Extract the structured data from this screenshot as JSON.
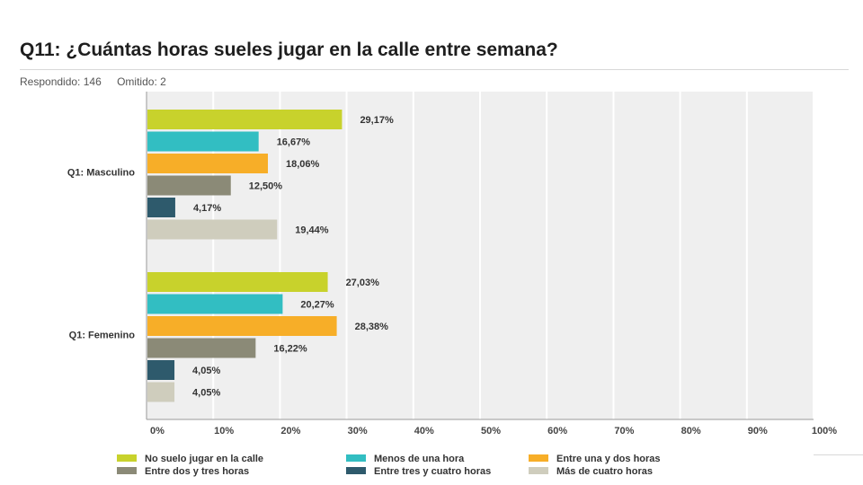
{
  "header": {
    "title": "Q11: ¿Cuántas horas sueles jugar en la calle entre semana?",
    "answered": "Respondido: 146",
    "skipped": "Omitido: 2"
  },
  "chart_data": {
    "type": "bar",
    "orientation": "horizontal",
    "categories": [
      "Q1: Masculino",
      "Q1: Femenino"
    ],
    "series": [
      {
        "name": "No suelo jugar en la calle",
        "color": "#c8d22c",
        "values": [
          29.17,
          27.03
        ],
        "labels": [
          "29,17%",
          "27,03%"
        ]
      },
      {
        "name": "Menos de una hora",
        "color": "#32bec2",
        "values": [
          16.67,
          20.27
        ],
        "labels": [
          "16,67%",
          "20,27%"
        ]
      },
      {
        "name": "Entre una y dos horas",
        "color": "#f7ae28",
        "values": [
          18.06,
          28.38
        ],
        "labels": [
          "18,06%",
          "28,38%"
        ]
      },
      {
        "name": "Entre dos y tres horas",
        "color": "#8b8a77",
        "values": [
          12.5,
          16.22
        ],
        "labels": [
          "12,50%",
          "16,22%"
        ]
      },
      {
        "name": "Entre tres y cuatro horas",
        "color": "#2e5a6c",
        "values": [
          4.17,
          4.05
        ],
        "labels": [
          "4,17%",
          "4,05%"
        ]
      },
      {
        "name": "Más de cuatro horas",
        "color": "#cfcdbd",
        "values": [
          19.44,
          4.05
        ],
        "labels": [
          "19,44%",
          "4,05%"
        ]
      }
    ],
    "xlim": [
      0,
      100
    ],
    "xticks": [
      "0%",
      "10%",
      "20%",
      "30%",
      "40%",
      "50%",
      "60%",
      "70%",
      "80%",
      "90%",
      "100%"
    ],
    "grid": true,
    "legend": "bottom"
  }
}
